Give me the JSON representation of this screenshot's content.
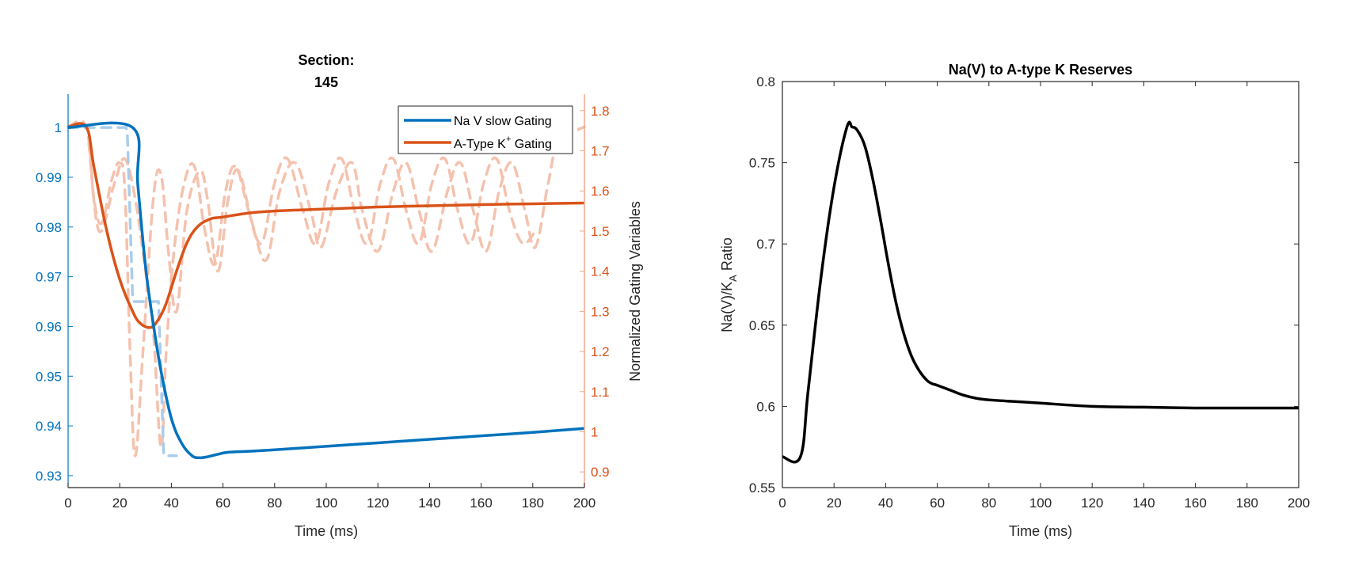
{
  "chart_data": [
    {
      "type": "line",
      "title": [
        "Section:",
        "145"
      ],
      "xlabel": "Time (ms)",
      "ylabel_left": "",
      "ylabel_right": "Normalized Gating Variables",
      "xlim": [
        0,
        200
      ],
      "ylim_left": [
        0.9276,
        1.0067
      ],
      "ylim_right": [
        0.861,
        1.841
      ],
      "x_ticks": [
        0,
        20,
        40,
        60,
        80,
        100,
        120,
        140,
        160,
        180,
        200
      ],
      "y_ticks_left": [
        0.93,
        0.94,
        0.95,
        0.96,
        0.97,
        0.98,
        0.99,
        1
      ],
      "y_ticks_left_labels": [
        "0.93",
        "0.94",
        "0.95",
        "0.96",
        "0.97",
        "0.98",
        "0.99",
        "1"
      ],
      "y_ticks_right": [
        0.9,
        1.0,
        1.1,
        1.2,
        1.3,
        1.4,
        1.5,
        1.6,
        1.7,
        1.8
      ],
      "y_ticks_right_labels": [
        "0.9",
        "1",
        "1.1",
        "1.2",
        "1.3",
        "1.4",
        "1.5",
        "1.6",
        "1.7",
        "1.8"
      ],
      "grid": false,
      "legend_position": "top-right",
      "legend": [
        {
          "label": "Na V slow Gating",
          "color": "#0072BD"
        },
        {
          "label_main": "A-Type K",
          "label_sup": "+",
          "label_tail": " Gating",
          "color": "#D95319"
        }
      ],
      "colors": {
        "left_axis": "#0072BD",
        "right_axis": "#D95319",
        "right_axis_line": "#EFA88E",
        "dashed_blue": "#A9CDEB",
        "dashed_orange": "#F4C2AE"
      },
      "series": [
        {
          "name": "Na V slow Gating",
          "axis": "left",
          "style": "solid",
          "x": [
            0,
            25,
            27,
            30,
            33,
            36,
            40,
            44,
            48,
            51,
            54,
            58,
            62,
            70,
            80,
            100,
            120,
            140,
            160,
            180,
            200
          ],
          "y": [
            1.0,
            1.0,
            0.9885,
            0.972,
            0.9605,
            0.951,
            0.9415,
            0.9365,
            0.934,
            0.9336,
            0.9338,
            0.9343,
            0.9347,
            0.9349,
            0.9352,
            0.9359,
            0.9366,
            0.9373,
            0.938,
            0.9387,
            0.9395
          ]
        },
        {
          "name": "Na V slow Gating (dashed, compartment)",
          "axis": "left",
          "style": "dashed",
          "x": [
            0,
            22.5,
            23,
            25,
            25.5,
            35,
            35.5,
            37,
            37.5,
            42
          ],
          "y": [
            1.0,
            1.0,
            0.998,
            0.9655,
            0.965,
            0.965,
            0.958,
            0.9345,
            0.934,
            0.934
          ]
        },
        {
          "name": "A-Type K+ Gating",
          "axis": "right",
          "style": "solid",
          "x": [
            0,
            7,
            10,
            15,
            20,
            25,
            28,
            32,
            35,
            38,
            42,
            46,
            50,
            55,
            60,
            70,
            80,
            100,
            120,
            140,
            160,
            180,
            200
          ],
          "y": [
            1.76,
            1.76,
            1.66,
            1.5,
            1.38,
            1.3,
            1.27,
            1.26,
            1.28,
            1.32,
            1.4,
            1.47,
            1.51,
            1.53,
            1.535,
            1.545,
            1.55,
            1.555,
            1.56,
            1.563,
            1.566,
            1.568,
            1.57
          ],
          "steady_value": 1.57
        },
        {
          "name": "A-Type K+ Gating (dashed oscillation A)",
          "axis": "right",
          "style": "dashed",
          "x": [
            0,
            7,
            10,
            13,
            17,
            20,
            22,
            24,
            26,
            29,
            33,
            36,
            39,
            42,
            46,
            51,
            54,
            58,
            62,
            66,
            72,
            77,
            82,
            88,
            94,
            98,
            104,
            110,
            114,
            120,
            126,
            131,
            136,
            141,
            147,
            152,
            157,
            162,
            167,
            172,
            177,
            181,
            186,
            190,
            200
          ],
          "y": [
            1.76,
            1.76,
            1.58,
            1.52,
            1.63,
            1.67,
            1.6,
            1.2,
            0.94,
            1.2,
            1.58,
            1.64,
            1.44,
            1.3,
            1.55,
            1.65,
            1.58,
            1.4,
            1.58,
            1.65,
            1.5,
            1.43,
            1.6,
            1.67,
            1.55,
            1.46,
            1.6,
            1.67,
            1.55,
            1.45,
            1.6,
            1.67,
            1.55,
            1.45,
            1.6,
            1.67,
            1.55,
            1.45,
            1.6,
            1.67,
            1.55,
            1.46,
            1.62,
            1.72,
            1.76
          ]
        },
        {
          "name": "A-Type K+ Gating (dashed oscillation B)",
          "axis": "right",
          "style": "dashed",
          "x": [
            8,
            12,
            18,
            22,
            26,
            30,
            33,
            36,
            38,
            41,
            45,
            49,
            53,
            57,
            61,
            65,
            70,
            75,
            80,
            85,
            91,
            96,
            101,
            106,
            111,
            116,
            121,
            126,
            131,
            136,
            141,
            146,
            151,
            156,
            161,
            166,
            171,
            176,
            181
          ],
          "y": [
            1.72,
            1.5,
            1.62,
            1.68,
            1.58,
            1.4,
            1.25,
            0.96,
            1.2,
            1.45,
            1.62,
            1.66,
            1.5,
            1.42,
            1.6,
            1.66,
            1.55,
            1.47,
            1.62,
            1.68,
            1.55,
            1.47,
            1.62,
            1.68,
            1.55,
            1.47,
            1.62,
            1.68,
            1.55,
            1.47,
            1.62,
            1.68,
            1.55,
            1.47,
            1.62,
            1.68,
            1.55,
            1.47,
            1.5
          ]
        }
      ]
    },
    {
      "type": "line",
      "title": "Na(V) to A-type K Reserves",
      "xlabel": "Time (ms)",
      "ylabel": "Na(V)/K",
      "ylabel_sub": "A",
      "ylabel_tail": " Ratio",
      "xlim": [
        0,
        200
      ],
      "ylim": [
        0.55,
        0.8
      ],
      "x_ticks": [
        0,
        20,
        40,
        60,
        80,
        100,
        120,
        140,
        160,
        180,
        200
      ],
      "y_ticks": [
        0.55,
        0.6,
        0.65,
        0.7,
        0.75,
        0.8
      ],
      "y_ticks_labels": [
        "0.55",
        "0.6",
        "0.65",
        "0.7",
        "0.75",
        "0.8"
      ],
      "grid": false,
      "box": true,
      "series": [
        {
          "name": "Na(V)/K_A ratio",
          "color": "#000000",
          "x": [
            0,
            7,
            10,
            15,
            20,
            25,
            27,
            29,
            32,
            35,
            38,
            41,
            44,
            47,
            50,
            53,
            56,
            58,
            60,
            65,
            70,
            75,
            80,
            90,
            100,
            120,
            140,
            160,
            180,
            200
          ],
          "y": [
            0.569,
            0.569,
            0.61,
            0.68,
            0.735,
            0.772,
            0.772,
            0.77,
            0.76,
            0.74,
            0.715,
            0.688,
            0.664,
            0.645,
            0.631,
            0.622,
            0.616,
            0.614,
            0.613,
            0.61,
            0.607,
            0.605,
            0.604,
            0.603,
            0.602,
            0.6,
            0.5995,
            0.599,
            0.599,
            0.599
          ]
        }
      ]
    }
  ]
}
